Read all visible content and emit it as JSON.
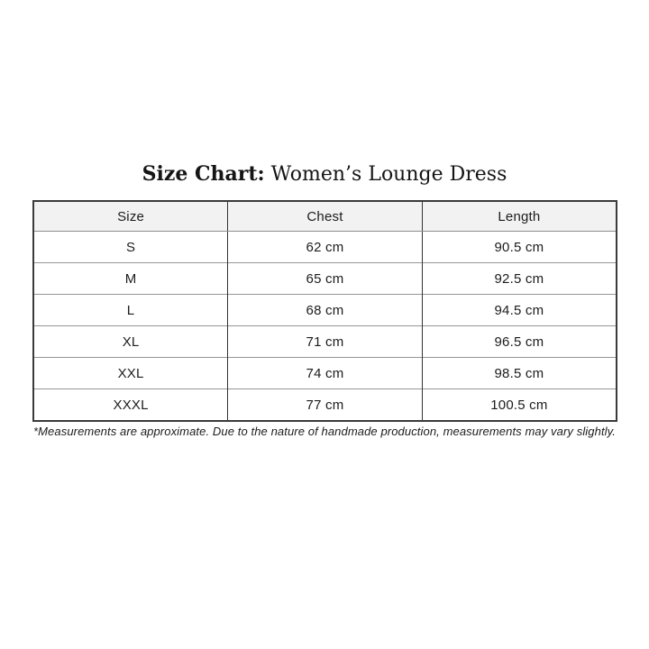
{
  "title": {
    "prefix": "Size Chart:",
    "rest": "Women’s Lounge Dress"
  },
  "table": {
    "headers": [
      "Size",
      "Chest",
      "Length"
    ],
    "rows": [
      {
        "size": "S",
        "chest": "62 cm",
        "length": "90.5 cm"
      },
      {
        "size": "M",
        "chest": "65 cm",
        "length": "92.5 cm"
      },
      {
        "size": "L",
        "chest": "68 cm",
        "length": "94.5 cm"
      },
      {
        "size": "XL",
        "chest": "71 cm",
        "length": "96.5 cm"
      },
      {
        "size": "XXL",
        "chest": "74 cm",
        "length": "98.5 cm"
      },
      {
        "size": "XXXL",
        "chest": "77 cm",
        "length": "100.5 cm"
      }
    ]
  },
  "footnote": "*Measurements are approximate. Due to the nature of handmade production, measurements may vary slightly.",
  "colors": {
    "header_background": "#f2f2f2",
    "border_dark": "#3a3a3a",
    "border_light": "#969696",
    "text": "#1c1c1c",
    "page_background": "#ffffff"
  }
}
